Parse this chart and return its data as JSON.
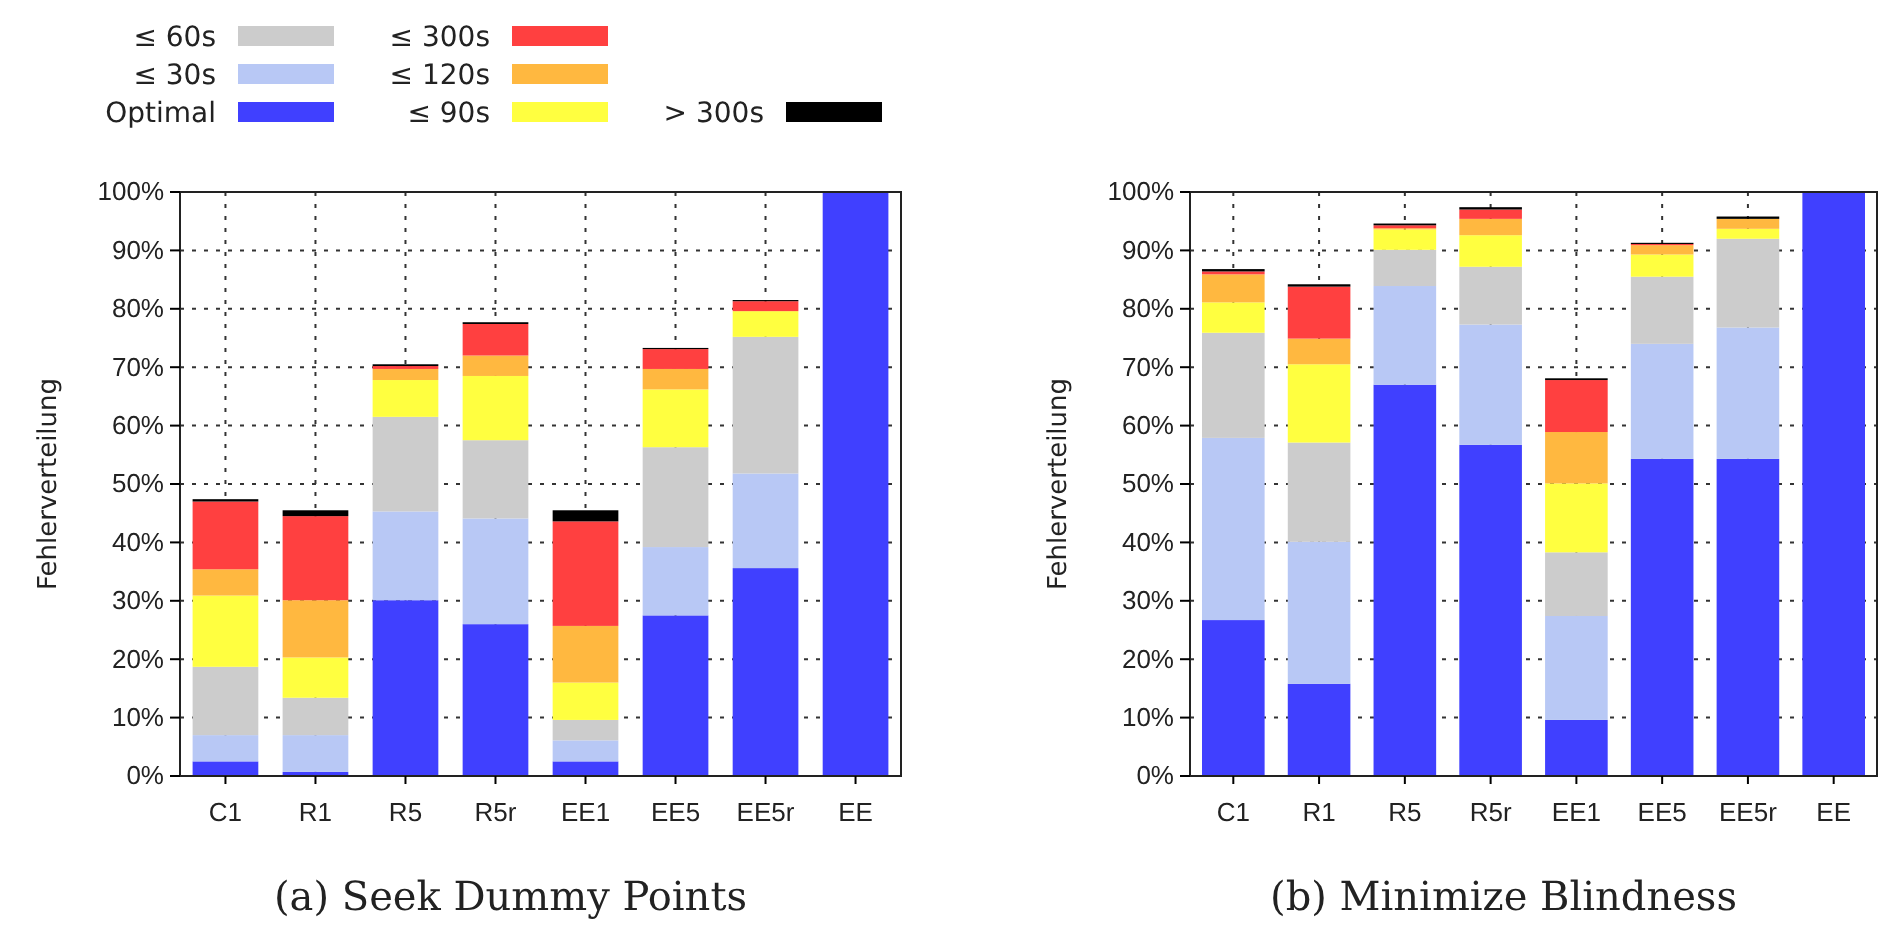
{
  "chart_data": [
    {
      "type": "bar",
      "title": "(a) Seek Dummy Points",
      "ylabel": "Fehlerverteilung",
      "stacked": true,
      "grid": true,
      "legend": "top left",
      "categories": [
        "C1",
        "R1",
        "R5",
        "R5r",
        "EE1",
        "EE5",
        "EE5r",
        "EE"
      ],
      "ylim": [
        0,
        100
      ],
      "yticks": [
        {
          "value": 0,
          "label": "0%"
        },
        {
          "value": 10,
          "label": "10%"
        },
        {
          "value": 20,
          "label": "20%"
        },
        {
          "value": 30,
          "label": "30%"
        },
        {
          "value": 40,
          "label": "40%"
        },
        {
          "value": 50,
          "label": "50%"
        },
        {
          "value": 60,
          "label": "60%"
        },
        {
          "value": 70,
          "label": "70%"
        },
        {
          "value": 80,
          "label": "80%"
        },
        {
          "value": 90,
          "label": "90%"
        },
        {
          "value": 100,
          "label": "100%"
        }
      ],
      "series": [
        {
          "name": "Optimal",
          "color": "#4040ff",
          "values": [
            2.5,
            0.7,
            30.1,
            26.0,
            2.5,
            27.5,
            35.6,
            100
          ]
        },
        {
          "name": "≤ 30s",
          "color": "#b8c8f5",
          "values": [
            4.5,
            6.3,
            15.2,
            18.1,
            3.6,
            11.7,
            16.2,
            0
          ]
        },
        {
          "name": "≤ 60s",
          "color": "#cccccc",
          "values": [
            11.7,
            6.4,
            16.2,
            13.4,
            3.5,
            17.1,
            23.4,
            0
          ]
        },
        {
          "name": "≤ 90s",
          "color": "#ffff40",
          "values": [
            12.2,
            6.9,
            6.3,
            11.0,
            6.4,
            9.9,
            4.4,
            0
          ]
        },
        {
          "name": "≤ 120s",
          "color": "#ffb840",
          "values": [
            4.5,
            9.8,
            1.9,
            3.5,
            9.7,
            3.5,
            0,
            0
          ]
        },
        {
          "name": "≤ 300s",
          "color": "#ff4040",
          "values": [
            11.6,
            14.4,
            0.5,
            5.4,
            17.9,
            3.4,
            1.7,
            0
          ]
        },
        {
          "name": "> 300s",
          "color": "#000000",
          "values": [
            0.4,
            1.0,
            0.3,
            0.3,
            1.9,
            0.2,
            0.2,
            0
          ]
        }
      ]
    },
    {
      "type": "bar",
      "title": "(b) Minimize Blindness",
      "ylabel": "Fehlerverteilung",
      "stacked": true,
      "grid": true,
      "categories": [
        "C1",
        "R1",
        "R5",
        "R5r",
        "EE1",
        "EE5",
        "EE5r",
        "EE"
      ],
      "ylim": [
        0,
        100
      ],
      "yticks": [
        {
          "value": 0,
          "label": "0%"
        },
        {
          "value": 10,
          "label": "10%"
        },
        {
          "value": 20,
          "label": "20%"
        },
        {
          "value": 30,
          "label": "30%"
        },
        {
          "value": 40,
          "label": "40%"
        },
        {
          "value": 50,
          "label": "50%"
        },
        {
          "value": 60,
          "label": "60%"
        },
        {
          "value": 70,
          "label": "70%"
        },
        {
          "value": 80,
          "label": "80%"
        },
        {
          "value": 90,
          "label": "90%"
        },
        {
          "value": 100,
          "label": "100%"
        }
      ],
      "series": [
        {
          "color": "#4040ff",
          "values": [
            26.7,
            15.8,
            67.0,
            56.7,
            9.6,
            54.3,
            54.3,
            100
          ]
        },
        {
          "color": "#b8c8f5",
          "values": [
            31.2,
            24.3,
            16.9,
            20.6,
            17.8,
            19.7,
            22.5,
            0
          ]
        },
        {
          "color": "#cccccc",
          "values": [
            18.0,
            17.0,
            6.2,
            9.9,
            10.9,
            11.5,
            15.2,
            0
          ]
        },
        {
          "color": "#ffff40",
          "values": [
            5.2,
            13.4,
            3.5,
            5.4,
            11.8,
            3.8,
            1.7,
            0
          ]
        },
        {
          "color": "#ffb840",
          "values": [
            4.8,
            4.4,
            0.2,
            2.8,
            8.8,
            1.6,
            1.7,
            0
          ]
        },
        {
          "color": "#ff4040",
          "values": [
            0.5,
            8.9,
            0.5,
            1.6,
            8.9,
            0.2,
            0,
            0
          ]
        },
        {
          "color": "#000000",
          "values": [
            0.4,
            0.4,
            0.3,
            0.4,
            0.3,
            0.2,
            0.4,
            0
          ]
        }
      ]
    }
  ]
}
